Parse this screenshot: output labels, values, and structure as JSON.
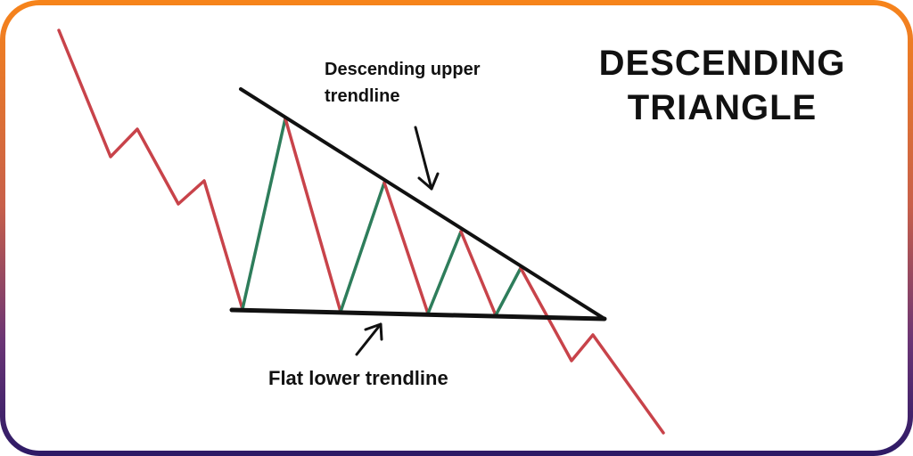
{
  "title": {
    "line1": "DESCENDING",
    "line2": "TRIANGLE"
  },
  "annotations": {
    "upper_line1": "Descending upper",
    "upper_line2": "trendline",
    "lower": "Flat lower trendline"
  },
  "colors": {
    "down_leg": "#c8434a",
    "up_leg": "#2e7d5b",
    "trendline": "#111111",
    "border_top": "#f7841a",
    "border_bottom": "#2d1a66"
  }
}
